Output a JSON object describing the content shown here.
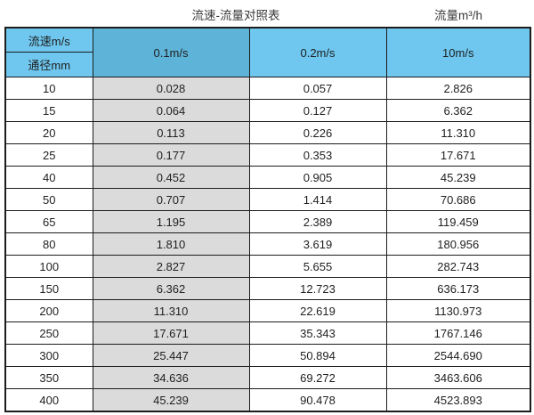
{
  "titles": {
    "main": "流速-流量对照表",
    "right": "流量m³/h"
  },
  "table": {
    "corner": {
      "top": "流速m/s",
      "bottom": "通径mm"
    },
    "columns": [
      "0.1m/s",
      "0.2m/s",
      "10m/s"
    ],
    "rows": [
      {
        "diameter": "10",
        "values": [
          "0.028",
          "0.057",
          "2.826"
        ]
      },
      {
        "diameter": "15",
        "values": [
          "0.064",
          "0.127",
          "6.362"
        ]
      },
      {
        "diameter": "20",
        "values": [
          "0.113",
          "0.226",
          "11.310"
        ]
      },
      {
        "diameter": "25",
        "values": [
          "0.177",
          "0.353",
          "17.671"
        ]
      },
      {
        "diameter": "40",
        "values": [
          "0.452",
          "0.905",
          "45.239"
        ]
      },
      {
        "diameter": "50",
        "values": [
          "0.707",
          "1.414",
          "70.686"
        ]
      },
      {
        "diameter": "65",
        "values": [
          "1.195",
          "2.389",
          "119.459"
        ]
      },
      {
        "diameter": "80",
        "values": [
          "1.810",
          "3.619",
          "180.956"
        ]
      },
      {
        "diameter": "100",
        "values": [
          "2.827",
          "5.655",
          "282.743"
        ]
      },
      {
        "diameter": "150",
        "values": [
          "6.362",
          "12.723",
          "636.173"
        ]
      },
      {
        "diameter": "200",
        "values": [
          "11.310",
          "22.619",
          "1130.973"
        ]
      },
      {
        "diameter": "250",
        "values": [
          "17.671",
          "35.343",
          "1767.146"
        ]
      },
      {
        "diameter": "300",
        "values": [
          "25.447",
          "50.894",
          "2544.690"
        ]
      },
      {
        "diameter": "350",
        "values": [
          "34.636",
          "69.272",
          "3463.606"
        ]
      },
      {
        "diameter": "400",
        "values": [
          "45.239",
          "90.478",
          "4523.893"
        ]
      }
    ]
  },
  "colors": {
    "header_light_blue": "#6fc7ef",
    "header_dark_blue": "#5db4d8",
    "highlight_column_gray": "#dbdbdb",
    "border": "#1c1c1c",
    "background": "#ffffff"
  },
  "chart_data": {
    "type": "table",
    "title": "流速-流量对照表",
    "unit_label": "流量m³/h",
    "row_header_label": "通径mm",
    "column_header_label": "流速m/s",
    "columns": [
      "0.1m/s",
      "0.2m/s",
      "10m/s"
    ],
    "diameters_mm": [
      10,
      15,
      20,
      25,
      40,
      50,
      65,
      80,
      100,
      150,
      200,
      250,
      300,
      350,
      400
    ],
    "series": [
      {
        "name": "0.1m/s",
        "values": [
          0.028,
          0.064,
          0.113,
          0.177,
          0.452,
          0.707,
          1.195,
          1.81,
          2.827,
          6.362,
          11.31,
          17.671,
          25.447,
          34.636,
          45.239
        ]
      },
      {
        "name": "0.2m/s",
        "values": [
          0.057,
          0.127,
          0.226,
          0.353,
          0.905,
          1.414,
          2.389,
          3.619,
          5.655,
          12.723,
          22.619,
          35.343,
          50.894,
          69.272,
          90.478
        ]
      },
      {
        "name": "10m/s",
        "values": [
          2.826,
          6.362,
          11.31,
          17.671,
          45.239,
          70.686,
          119.459,
          180.956,
          282.743,
          636.173,
          1130.973,
          1767.146,
          2544.69,
          3463.606,
          4523.893
        ]
      }
    ]
  }
}
